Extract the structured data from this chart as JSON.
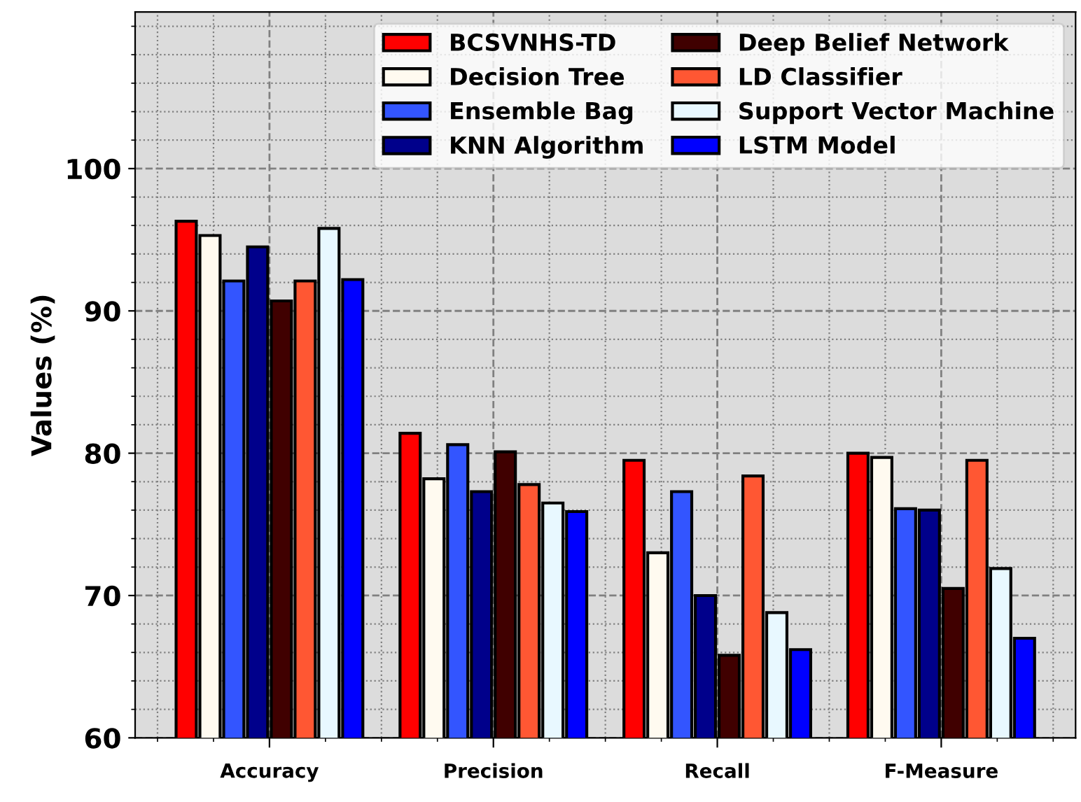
{
  "chart_data": {
    "type": "bar",
    "ylabel": "Values (%)",
    "categories": [
      "Accuracy",
      "Precision",
      "Recall",
      "F-Measure"
    ],
    "series": [
      {
        "name": "BCSVNHS-TD",
        "color": "#ff0000",
        "values": [
          96.3,
          81.4,
          79.5,
          80.0
        ]
      },
      {
        "name": "Decision Tree",
        "color": "#fffaf0",
        "values": [
          95.3,
          78.2,
          73.0,
          79.7
        ]
      },
      {
        "name": "Ensemble Bag",
        "color": "#3355ff",
        "values": [
          92.1,
          80.6,
          77.3,
          76.1
        ]
      },
      {
        "name": "KNN Algorithm",
        "color": "#00008b",
        "values": [
          94.5,
          77.3,
          70.0,
          76.0
        ]
      },
      {
        "name": "Deep Belief Network",
        "color": "#400000",
        "values": [
          90.7,
          80.1,
          65.8,
          70.5
        ]
      },
      {
        "name": "LD Classifier",
        "color": "#ff5733",
        "values": [
          92.1,
          77.8,
          78.4,
          79.5
        ]
      },
      {
        "name": "Support Vector Machine",
        "color": "#e8f8ff",
        "values": [
          95.8,
          76.5,
          68.8,
          71.9
        ]
      },
      {
        "name": "LSTM Model",
        "color": "#0000ff",
        "values": [
          92.2,
          75.9,
          66.2,
          67.0
        ]
      }
    ],
    "ylim": [
      60,
      111
    ],
    "yticks": [
      60,
      70,
      80,
      90,
      100
    ],
    "grid": true,
    "legend": "top right"
  }
}
